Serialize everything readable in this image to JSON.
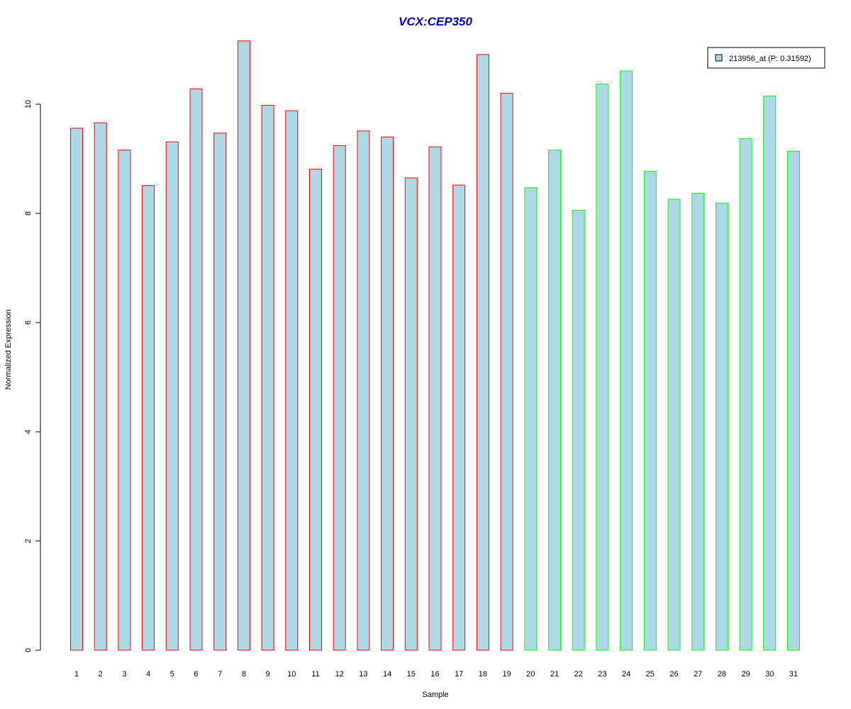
{
  "chart_data": {
    "type": "bar",
    "title": "VCX:CEP350",
    "xlabel": "Sample",
    "ylabel": "Normalized Expression",
    "ylim": [
      0,
      11.2
    ],
    "yticks": [
      "0",
      "2",
      "4",
      "6",
      "8",
      "10"
    ],
    "categories": [
      "1",
      "2",
      "3",
      "4",
      "5",
      "6",
      "7",
      "8",
      "9",
      "10",
      "11",
      "12",
      "13",
      "14",
      "15",
      "16",
      "17",
      "18",
      "19",
      "20",
      "21",
      "22",
      "23",
      "24",
      "25",
      "26",
      "27",
      "28",
      "29",
      "30",
      "31"
    ],
    "values": [
      9.56,
      9.66,
      9.16,
      8.51,
      9.31,
      10.28,
      9.47,
      11.16,
      9.98,
      9.88,
      8.81,
      9.24,
      9.51,
      9.4,
      8.65,
      9.22,
      8.52,
      10.91,
      10.2,
      8.47,
      9.16,
      8.06,
      10.37,
      10.61,
      8.77,
      8.26,
      8.37,
      8.19,
      9.37,
      10.15,
      9.14
    ],
    "groups": [
      "red",
      "red",
      "red",
      "red",
      "red",
      "red",
      "red",
      "red",
      "red",
      "red",
      "red",
      "red",
      "red",
      "red",
      "red",
      "red",
      "red",
      "red",
      "red",
      "green",
      "green",
      "green",
      "green",
      "green",
      "green",
      "green",
      "green",
      "green",
      "green",
      "green",
      "green"
    ],
    "series": [
      {
        "name": "213956_at (P: 0.31592)",
        "fill": "#add8e6"
      }
    ],
    "colors": {
      "fill": "#add8e6",
      "red": "#ff0000",
      "green": "#00ff00",
      "title": "#0000cd"
    },
    "legend_position": "top-right",
    "grid": false
  }
}
